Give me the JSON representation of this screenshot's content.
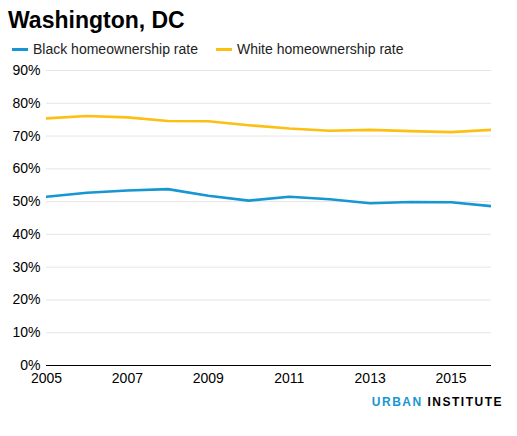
{
  "chart_data": {
    "type": "line",
    "title": "Washington, DC",
    "source": "URBAN INSTITUTE",
    "x": [
      2005,
      2006,
      2007,
      2008,
      2009,
      2010,
      2011,
      2012,
      2013,
      2014,
      2015,
      2016
    ],
    "series": [
      {
        "name": "Black homeownership rate",
        "color": "#1696d2",
        "values": [
          51.5,
          52.7,
          53.4,
          53.8,
          51.8,
          50.3,
          51.5,
          50.7,
          49.5,
          49.9,
          49.8,
          48.6
        ]
      },
      {
        "name": "White homeownership rate",
        "color": "#fdbf11",
        "values": [
          75.4,
          76.1,
          75.7,
          74.6,
          74.5,
          73.3,
          72.3,
          71.6,
          71.9,
          71.5,
          71.2,
          71.9
        ]
      }
    ],
    "xlim": [
      2005,
      2016
    ],
    "xticks": [
      2005,
      2007,
      2009,
      2011,
      2013,
      2015
    ],
    "ylim": [
      0,
      90
    ],
    "yticks": [
      {
        "value": 0,
        "label": "0%"
      },
      {
        "value": 10,
        "label": "10%"
      },
      {
        "value": 20,
        "label": "20%"
      },
      {
        "value": 30,
        "label": "30%"
      },
      {
        "value": 40,
        "label": "40%"
      },
      {
        "value": 50,
        "label": "50%"
      },
      {
        "value": 60,
        "label": "60%"
      },
      {
        "value": 70,
        "label": "70%"
      },
      {
        "value": 80,
        "label": "80%"
      },
      {
        "value": 90,
        "label": "90%"
      }
    ],
    "grid": true,
    "legend": "top"
  }
}
